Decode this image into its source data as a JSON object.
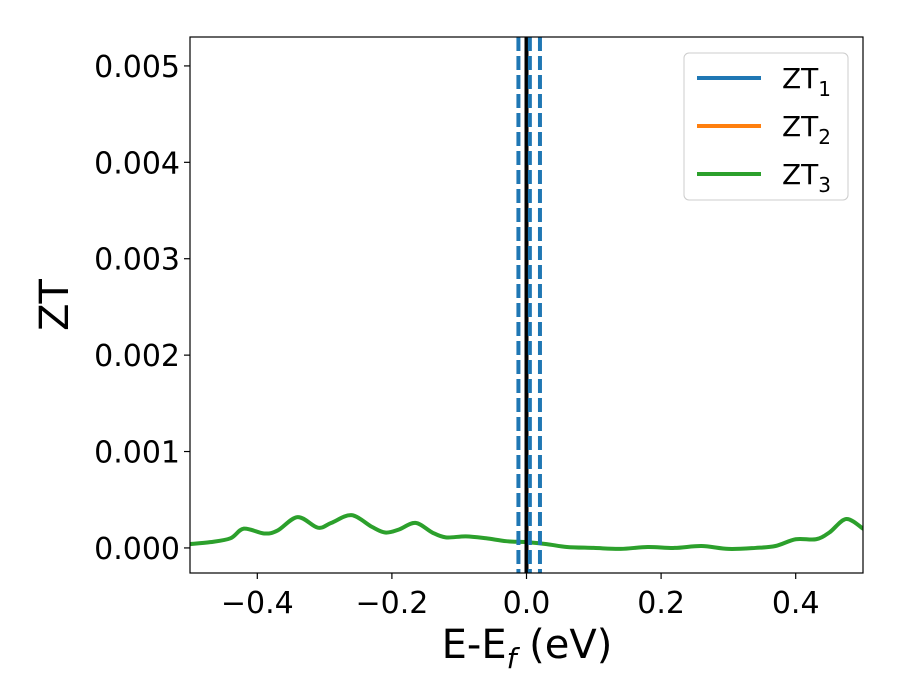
{
  "chart_data": {
    "type": "line",
    "title": "",
    "xlabel": {
      "main": "E-E",
      "sub": "f",
      "suffix": " (eV)"
    },
    "ylabel": "ZT",
    "xlim": [
      -0.5,
      0.5
    ],
    "ylim": [
      -0.00026,
      0.0053
    ],
    "xticks": [
      -0.4,
      -0.2,
      0.0,
      0.2,
      0.4
    ],
    "xtick_labels": [
      "−0.4",
      "−0.2",
      "0.0",
      "0.2",
      "0.4"
    ],
    "yticks": [
      0.0,
      0.001,
      0.002,
      0.003,
      0.004,
      0.005
    ],
    "ytick_labels": [
      "0.000",
      "0.001",
      "0.002",
      "0.003",
      "0.004",
      "0.005"
    ],
    "grid": false,
    "legend_position": "top-right",
    "series": [
      {
        "name": "ZT",
        "name_sub": "1",
        "color": "#1f77b4",
        "draw": false
      },
      {
        "name": "ZT",
        "name_sub": "2",
        "color": "#ff7f0e",
        "draw": false
      },
      {
        "name": "ZT",
        "name_sub": "3",
        "color": "#2ca02c",
        "draw": true,
        "x": [
          -0.5,
          -0.47,
          -0.44,
          -0.42,
          -0.39,
          -0.37,
          -0.34,
          -0.31,
          -0.29,
          -0.26,
          -0.23,
          -0.21,
          -0.19,
          -0.165,
          -0.14,
          -0.12,
          -0.09,
          -0.06,
          -0.03,
          0.0,
          0.03,
          0.06,
          0.1,
          0.14,
          0.18,
          0.22,
          0.26,
          0.3,
          0.34,
          0.37,
          0.4,
          0.43,
          0.45,
          0.475,
          0.5
        ],
        "y": [
          4e-05,
          6e-05,
          0.0001,
          0.0002,
          0.00015,
          0.00018,
          0.00032,
          0.00021,
          0.00026,
          0.00034,
          0.00022,
          0.00016,
          0.00019,
          0.00026,
          0.00016,
          0.00011,
          0.00012,
          0.0001,
          7e-05,
          6e-05,
          4e-05,
          1e-05,
          0.0,
          -1e-05,
          1e-05,
          0.0,
          2e-05,
          -1e-05,
          0.0,
          2e-05,
          9e-05,
          9e-05,
          0.00016,
          0.0003,
          0.0002
        ]
      }
    ],
    "vlines": [
      {
        "x": 0.0,
        "color": "#000000",
        "style": "solid"
      },
      {
        "x": -0.012,
        "color": "#1f77b4",
        "style": "dashed"
      },
      {
        "x": 0.005,
        "color": "#1f77b4",
        "style": "dashed"
      },
      {
        "x": 0.02,
        "color": "#1f77b4",
        "style": "dashed"
      }
    ]
  }
}
